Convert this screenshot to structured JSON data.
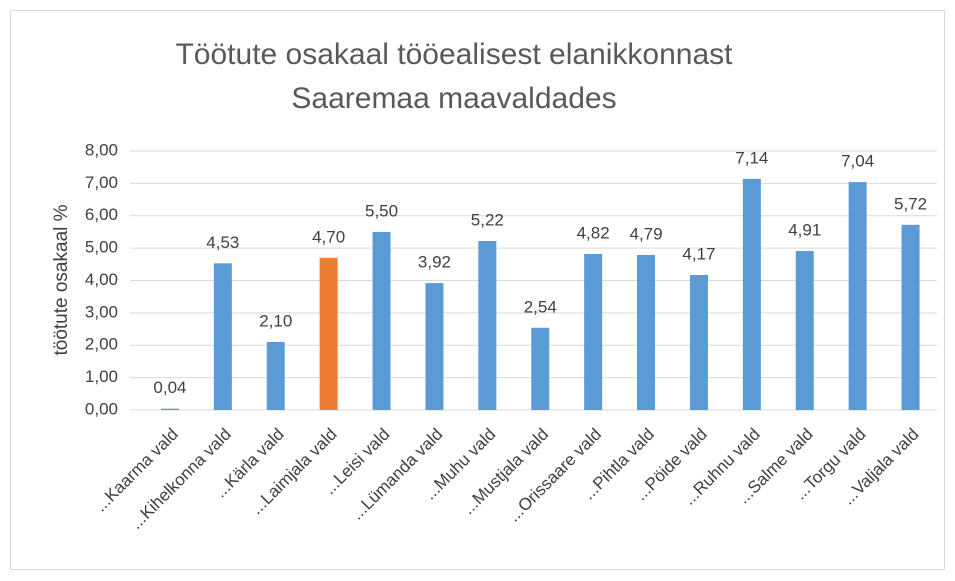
{
  "chart_data": {
    "type": "bar",
    "title": [
      "Töötute osakaal tööealisest elanikkonnast",
      "Saaremaa maavaldades"
    ],
    "ylabel": "töötute osakaal %",
    "categories": [
      "...Kaarma vald",
      "...Kihelkonna vald",
      "...Kärla vald",
      "...Laimjala vald",
      "...Leisi vald",
      "...Lümanda vald",
      "...Muhu vald",
      "...Mustjala vald",
      "...Orissaare vald",
      "...Pihtla vald",
      "...Pöide vald",
      "...Ruhnu vald",
      "...Salme vald",
      "...Torgu vald",
      "...Valjala vald"
    ],
    "values": [
      0.04,
      4.53,
      2.1,
      4.7,
      5.5,
      3.92,
      5.22,
      2.54,
      4.82,
      4.79,
      4.17,
      7.14,
      4.91,
      7.04,
      5.72
    ],
    "value_labels": [
      "0,04",
      "4,53",
      "2,10",
      "4,70",
      "5,50",
      "3,92",
      "5,22",
      "2,54",
      "4,82",
      "4,79",
      "4,17",
      "7,14",
      "4,91",
      "7,04",
      "5,72"
    ],
    "colors": [
      "#5b9bd5",
      "#5b9bd5",
      "#5b9bd5",
      "#ed7d31",
      "#5b9bd5",
      "#5b9bd5",
      "#5b9bd5",
      "#5b9bd5",
      "#5b9bd5",
      "#5b9bd5",
      "#5b9bd5",
      "#5b9bd5",
      "#5b9bd5",
      "#5b9bd5",
      "#5b9bd5"
    ],
    "ylim": [
      0,
      8
    ],
    "yticks": [
      {
        "value": 0,
        "label": "0,00"
      },
      {
        "value": 1,
        "label": "1,00"
      },
      {
        "value": 2,
        "label": "2,00"
      },
      {
        "value": 3,
        "label": "3,00"
      },
      {
        "value": 4,
        "label": "4,00"
      },
      {
        "value": 5,
        "label": "5,00"
      },
      {
        "value": 6,
        "label": "6,00"
      },
      {
        "value": 7,
        "label": "7,00"
      },
      {
        "value": 8,
        "label": "8,00"
      }
    ],
    "grid": true
  }
}
